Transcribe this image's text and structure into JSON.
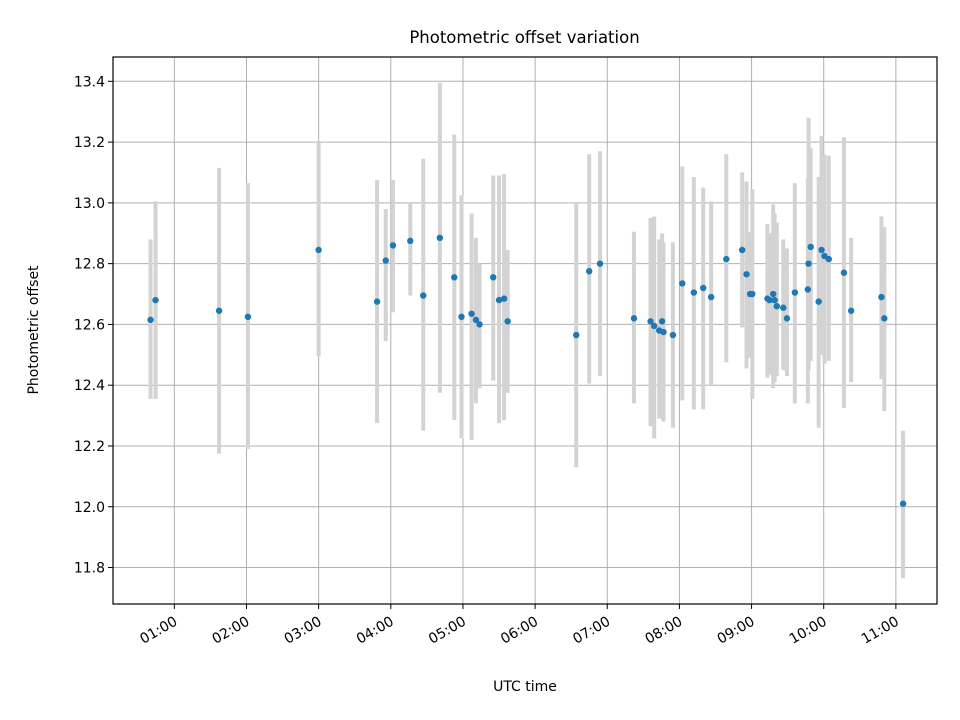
{
  "chart_data": {
    "type": "scatter",
    "title": "Photometric offset variation",
    "xlabel": "UTC time",
    "ylabel": "Photometric offset",
    "x_units": "hours UTC",
    "xlim": [
      0.15,
      11.57
    ],
    "ylim": [
      11.68,
      13.48
    ],
    "grid": true,
    "x_ticks": [
      1,
      2,
      3,
      4,
      5,
      6,
      7,
      8,
      9,
      10,
      11
    ],
    "x_tick_labels": [
      "01:00",
      "02:00",
      "03:00",
      "04:00",
      "05:00",
      "06:00",
      "07:00",
      "08:00",
      "09:00",
      "10:00",
      "11:00"
    ],
    "y_ticks": [
      11.8,
      12.0,
      12.2,
      12.4,
      12.6,
      12.8,
      13.0,
      13.2,
      13.4
    ],
    "y_tick_labels": [
      "11.8",
      "12.0",
      "12.2",
      "12.4",
      "12.6",
      "12.8",
      "13.0",
      "13.2",
      "13.4"
    ],
    "marker_color": "#1f77b4",
    "errorbar_color": "#d3d3d3",
    "series": [
      {
        "x": [
          0.67,
          0.74,
          1.62,
          2.02,
          3.0,
          3.81,
          3.93,
          4.03,
          4.27,
          4.45,
          4.68,
          4.88,
          4.98,
          5.12,
          5.18,
          5.23,
          5.42,
          5.5,
          5.57,
          5.62,
          6.57,
          6.75,
          6.9,
          7.37,
          7.6,
          7.65,
          7.72,
          7.76,
          7.78,
          7.91,
          8.04,
          8.2,
          8.33,
          8.44,
          8.65,
          8.87,
          8.93,
          8.98,
          9.01,
          9.22,
          9.25,
          9.3,
          9.32,
          9.35,
          9.44,
          9.49,
          9.6,
          9.78,
          9.79,
          9.82,
          9.93,
          9.97,
          10.01,
          10.07,
          10.28,
          10.38,
          10.8,
          10.84,
          11.1
        ],
        "y": [
          12.615,
          12.68,
          12.645,
          12.625,
          12.845,
          12.675,
          12.81,
          12.86,
          12.875,
          12.695,
          12.885,
          12.755,
          12.625,
          12.635,
          12.615,
          12.6,
          12.755,
          12.68,
          12.685,
          12.61,
          12.565,
          12.775,
          12.8,
          12.62,
          12.61,
          12.595,
          12.58,
          12.61,
          12.575,
          12.565,
          12.735,
          12.705,
          12.72,
          12.69,
          12.815,
          12.845,
          12.765,
          12.7,
          12.7,
          12.685,
          12.68,
          12.7,
          12.68,
          12.66,
          12.655,
          12.62,
          12.705,
          12.715,
          12.8,
          12.855,
          12.675,
          12.845,
          12.825,
          12.815,
          12.77,
          12.645,
          12.69,
          12.62,
          12.01
        ],
        "yerr_low": [
          12.355,
          12.355,
          12.175,
          12.19,
          12.495,
          12.275,
          12.545,
          12.64,
          12.695,
          12.25,
          12.375,
          12.285,
          12.225,
          12.22,
          12.34,
          12.39,
          12.415,
          12.275,
          12.285,
          12.375,
          12.13,
          12.405,
          12.43,
          12.34,
          12.265,
          12.225,
          12.29,
          12.29,
          12.28,
          12.26,
          12.35,
          12.32,
          12.32,
          12.4,
          12.475,
          12.59,
          12.455,
          12.49,
          12.355,
          12.425,
          12.435,
          12.39,
          12.41,
          12.43,
          12.45,
          12.43,
          12.34,
          12.34,
          12.45,
          12.48,
          12.26,
          12.5,
          12.47,
          12.48,
          12.325,
          12.41,
          12.42,
          12.315,
          11.765
        ],
        "yerr_high": [
          12.88,
          13.005,
          13.115,
          13.065,
          13.2,
          13.075,
          12.98,
          13.075,
          13.0,
          13.145,
          13.395,
          13.225,
          13.025,
          12.965,
          12.885,
          12.8,
          13.09,
          13.09,
          13.095,
          12.845,
          13.0,
          13.16,
          13.17,
          12.905,
          12.95,
          12.955,
          12.88,
          12.9,
          12.87,
          12.87,
          13.12,
          13.085,
          13.05,
          13.005,
          13.16,
          13.1,
          13.07,
          12.905,
          13.045,
          12.93,
          12.9,
          12.995,
          12.965,
          12.935,
          12.88,
          12.85,
          13.065,
          13.08,
          13.28,
          13.18,
          13.085,
          13.22,
          13.16,
          13.155,
          13.215,
          12.885,
          12.955,
          12.92,
          12.25
        ]
      }
    ]
  }
}
